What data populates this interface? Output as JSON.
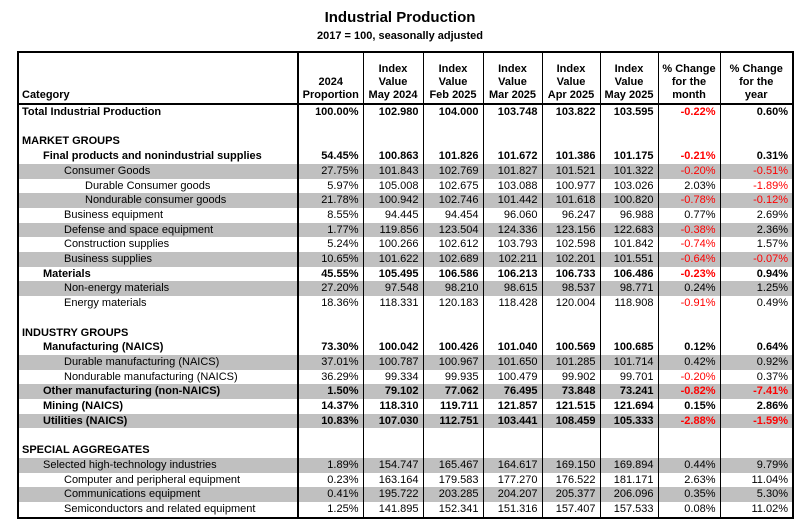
{
  "title": "Industrial Production",
  "subtitle": "2017 = 100, seasonally adjusted",
  "colors": {
    "negative_value": "#ff0000",
    "row_stripe": "#c0c0c0",
    "border": "#000000"
  },
  "table": {
    "header": {
      "category": "Category",
      "columns": [
        {
          "lines": [
            "2024",
            "Proportion"
          ]
        },
        {
          "lines": [
            "Index",
            "Value",
            "May 2024"
          ]
        },
        {
          "lines": [
            "Index",
            "Value",
            "Feb 2025"
          ]
        },
        {
          "lines": [
            "Index",
            "Value",
            "Mar 2025"
          ]
        },
        {
          "lines": [
            "Index",
            "Value",
            "Apr 2025"
          ]
        },
        {
          "lines": [
            "Index",
            "Value",
            "May 2025"
          ]
        },
        {
          "lines": [
            "% Change",
            "for the",
            "month"
          ]
        },
        {
          "lines": [
            "% Change",
            "for the",
            "year"
          ]
        }
      ]
    },
    "rows": [
      {
        "label": "Total Industrial Production",
        "indent": 0,
        "bold": true,
        "shaded": false,
        "values": [
          "100.00%",
          "102.980",
          "104.000",
          "103.748",
          "103.822",
          "103.595",
          "-0.22%",
          "0.60%"
        ]
      },
      {
        "blank": true
      },
      {
        "label": "MARKET GROUPS",
        "indent": 0,
        "bold": true,
        "shaded": false,
        "values": []
      },
      {
        "label": "Final products and nonindustrial supplies",
        "indent": 1,
        "bold": true,
        "shaded": false,
        "values": [
          "54.45%",
          "100.863",
          "101.826",
          "101.672",
          "101.386",
          "101.175",
          "-0.21%",
          "0.31%"
        ]
      },
      {
        "label": "Consumer Goods",
        "indent": 2,
        "bold": false,
        "shaded": true,
        "values": [
          "27.75%",
          "101.843",
          "102.769",
          "101.827",
          "101.521",
          "101.322",
          "-0.20%",
          "-0.51%"
        ]
      },
      {
        "label": "Durable Consumer goods",
        "indent": 3,
        "bold": false,
        "shaded": false,
        "values": [
          "5.97%",
          "105.008",
          "102.675",
          "103.088",
          "100.977",
          "103.026",
          "2.03%",
          "-1.89%"
        ]
      },
      {
        "label": "Nondurable consumer goods",
        "indent": 3,
        "bold": false,
        "shaded": true,
        "values": [
          "21.78%",
          "100.942",
          "102.746",
          "101.442",
          "101.618",
          "100.820",
          "-0.78%",
          "-0.12%"
        ]
      },
      {
        "label": "Business equipment",
        "indent": 2,
        "bold": false,
        "shaded": false,
        "values": [
          "8.55%",
          "94.445",
          "94.454",
          "96.060",
          "96.247",
          "96.988",
          "0.77%",
          "2.69%"
        ]
      },
      {
        "label": "Defense and space equipment",
        "indent": 2,
        "bold": false,
        "shaded": true,
        "values": [
          "1.77%",
          "119.856",
          "123.504",
          "124.336",
          "123.156",
          "122.683",
          "-0.38%",
          "2.36%"
        ]
      },
      {
        "label": "Construction supplies",
        "indent": 2,
        "bold": false,
        "shaded": false,
        "values": [
          "5.24%",
          "100.266",
          "102.612",
          "103.793",
          "102.598",
          "101.842",
          "-0.74%",
          "1.57%"
        ]
      },
      {
        "label": "Business supplies",
        "indent": 2,
        "bold": false,
        "shaded": true,
        "values": [
          "10.65%",
          "101.622",
          "102.689",
          "102.211",
          "102.201",
          "101.551",
          "-0.64%",
          "-0.07%"
        ]
      },
      {
        "label": "Materials",
        "indent": 1,
        "bold": true,
        "shaded": false,
        "values": [
          "45.55%",
          "105.495",
          "106.586",
          "106.213",
          "106.733",
          "106.486",
          "-0.23%",
          "0.94%"
        ]
      },
      {
        "label": "Non-energy materials",
        "indent": 2,
        "bold": false,
        "shaded": true,
        "values": [
          "27.20%",
          "97.548",
          "98.210",
          "98.615",
          "98.537",
          "98.771",
          "0.24%",
          "1.25%"
        ]
      },
      {
        "label": "Energy materials",
        "indent": 2,
        "bold": false,
        "shaded": false,
        "values": [
          "18.36%",
          "118.331",
          "120.183",
          "118.428",
          "120.004",
          "118.908",
          "-0.91%",
          "0.49%"
        ]
      },
      {
        "blank": true
      },
      {
        "label": "INDUSTRY GROUPS",
        "indent": 0,
        "bold": true,
        "shaded": false,
        "values": []
      },
      {
        "label": "Manufacturing (NAICS)",
        "indent": 1,
        "bold": true,
        "shaded": false,
        "values": [
          "73.30%",
          "100.042",
          "100.426",
          "101.040",
          "100.569",
          "100.685",
          "0.12%",
          "0.64%"
        ]
      },
      {
        "label": "Durable manufacturing (NAICS)",
        "indent": 2,
        "bold": false,
        "shaded": true,
        "values": [
          "37.01%",
          "100.787",
          "100.967",
          "101.650",
          "101.285",
          "101.714",
          "0.42%",
          "0.92%"
        ]
      },
      {
        "label": "Nondurable manufacturing (NAICS)",
        "indent": 2,
        "bold": false,
        "shaded": false,
        "values": [
          "36.29%",
          "99.334",
          "99.935",
          "100.479",
          "99.902",
          "99.701",
          "-0.20%",
          "0.37%"
        ]
      },
      {
        "label": "Other manufacturing (non-NAICS)",
        "indent": 1,
        "bold": true,
        "shaded": true,
        "values": [
          "1.50%",
          "79.102",
          "77.062",
          "76.495",
          "73.848",
          "73.241",
          "-0.82%",
          "-7.41%"
        ]
      },
      {
        "label": "Mining (NAICS)",
        "indent": 1,
        "bold": true,
        "shaded": false,
        "values": [
          "14.37%",
          "118.310",
          "119.711",
          "121.857",
          "121.515",
          "121.694",
          "0.15%",
          "2.86%"
        ]
      },
      {
        "label": "Utilities (NAICS)",
        "indent": 1,
        "bold": true,
        "shaded": true,
        "values": [
          "10.83%",
          "107.030",
          "112.751",
          "103.441",
          "108.459",
          "105.333",
          "-2.88%",
          "-1.59%"
        ]
      },
      {
        "blank": true
      },
      {
        "label": "SPECIAL AGGREGATES",
        "indent": 0,
        "bold": true,
        "shaded": false,
        "values": []
      },
      {
        "label": "Selected high-technology industries",
        "indent": 1,
        "bold": false,
        "shaded": true,
        "values": [
          "1.89%",
          "154.747",
          "165.467",
          "164.617",
          "169.150",
          "169.894",
          "0.44%",
          "9.79%"
        ]
      },
      {
        "label": "Computer and peripheral equipment",
        "indent": 2,
        "bold": false,
        "shaded": false,
        "values": [
          "0.23%",
          "163.164",
          "179.583",
          "177.270",
          "176.522",
          "181.171",
          "2.63%",
          "11.04%"
        ]
      },
      {
        "label": "Communications equipment",
        "indent": 2,
        "bold": false,
        "shaded": true,
        "values": [
          "0.41%",
          "195.722",
          "203.285",
          "204.207",
          "205.377",
          "206.096",
          "0.35%",
          "5.30%"
        ]
      },
      {
        "label": "Semiconductors and related equipment",
        "indent": 2,
        "bold": false,
        "shaded": false,
        "values": [
          "1.25%",
          "141.895",
          "152.341",
          "151.316",
          "157.407",
          "157.533",
          "0.08%",
          "11.02%"
        ]
      }
    ]
  }
}
